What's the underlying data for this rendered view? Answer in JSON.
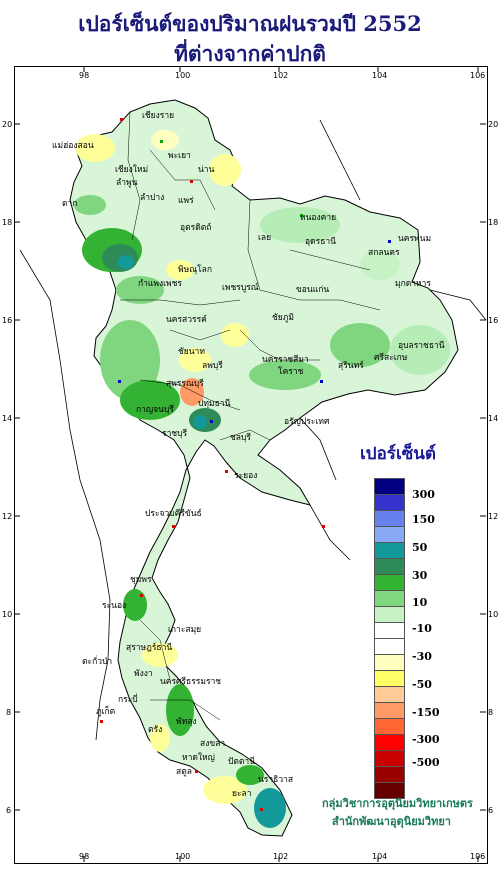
{
  "title": {
    "line1": "เปอร์เซ็นต์ของปริมาณฝนรวมปี 2552",
    "line2": "ที่ต่างจากค่าปกติ"
  },
  "axes": {
    "lon_ticks": [
      "98",
      "100",
      "102",
      "104",
      "106"
    ],
    "lat_ticks": [
      "20",
      "18",
      "16",
      "14",
      "12",
      "10",
      "8",
      "6"
    ]
  },
  "legend": {
    "title": "เปอร์เซ็นต์",
    "bins": [
      {
        "color": "#000080"
      },
      {
        "color": "#3333cc"
      },
      {
        "color": "#6680ee"
      },
      {
        "color": "#88aaf5"
      },
      {
        "color": "#139999"
      },
      {
        "color": "#2e8b57"
      },
      {
        "color": "#33b233"
      },
      {
        "color": "#7fd67f"
      },
      {
        "color": "#c6f2c6"
      },
      {
        "color": "#ffffff"
      },
      {
        "color": "#ffffff"
      },
      {
        "color": "#ffffc0"
      },
      {
        "color": "#ffff66"
      },
      {
        "color": "#ffcc99"
      },
      {
        "color": "#ff9966"
      },
      {
        "color": "#ff6633"
      },
      {
        "color": "#ff0000"
      },
      {
        "color": "#cc0000"
      },
      {
        "color": "#990000"
      },
      {
        "color": "#660000"
      }
    ],
    "labels": [
      "300",
      "150",
      "50",
      "30",
      "10",
      "-10",
      "-30",
      "-50",
      "-150",
      "-300",
      "-500"
    ]
  },
  "provinces": [
    "เชียงราย",
    "แม่ฮ่องสอน",
    "พะเยา",
    "เชียงใหม่",
    "ลำพูน",
    "ลำปาง",
    "น่าน",
    "แพร่",
    "หนองคาย",
    "อุตรดิตถ์",
    "สกลนคร",
    "นครพนม",
    "มุกดาหาร",
    "เลย",
    "อุดรธานี",
    "ตาก",
    "พิษณุโลก",
    "กำแพงเพชร",
    "เพชรบูรณ์",
    "ขอนแก่น",
    "นครสวรรค์",
    "ชัยภูมิ",
    "อุบลราชธานี",
    "ชัยนาท",
    "ลพบุรี",
    "นครราชสีมา",
    "โคราช",
    "สุรินทร์",
    "ศรีสะเกษ",
    "สุพรรณบุรี",
    "กาญจนบุรี",
    "ปทุมธานี",
    "อรัญประเทศ",
    "ราชบุรี",
    "ระยอง",
    "ชลบุรี",
    "ประจวบคีรีขันธ์",
    "ชุมพร",
    "ระนอง",
    "เกาะสมุย",
    "สุราษฎร์ธานี",
    "ตะกั่วป่า",
    "พังงา",
    "นครศรีธรรมราช",
    "กระบี่",
    "ภูเก็ต",
    "ตรัง",
    "พัทลุง",
    "สงขลา",
    "หาดใหญ่",
    "ปัตตานี",
    "สตูล",
    "ยะลา",
    "นราธิวาส"
  ],
  "credit": {
    "line1": "กลุ่มวิชาการอุตุนิยมวิทยาเกษตร",
    "line2": "สำนักพัฒนาอุตุนิยมวิทยา"
  }
}
